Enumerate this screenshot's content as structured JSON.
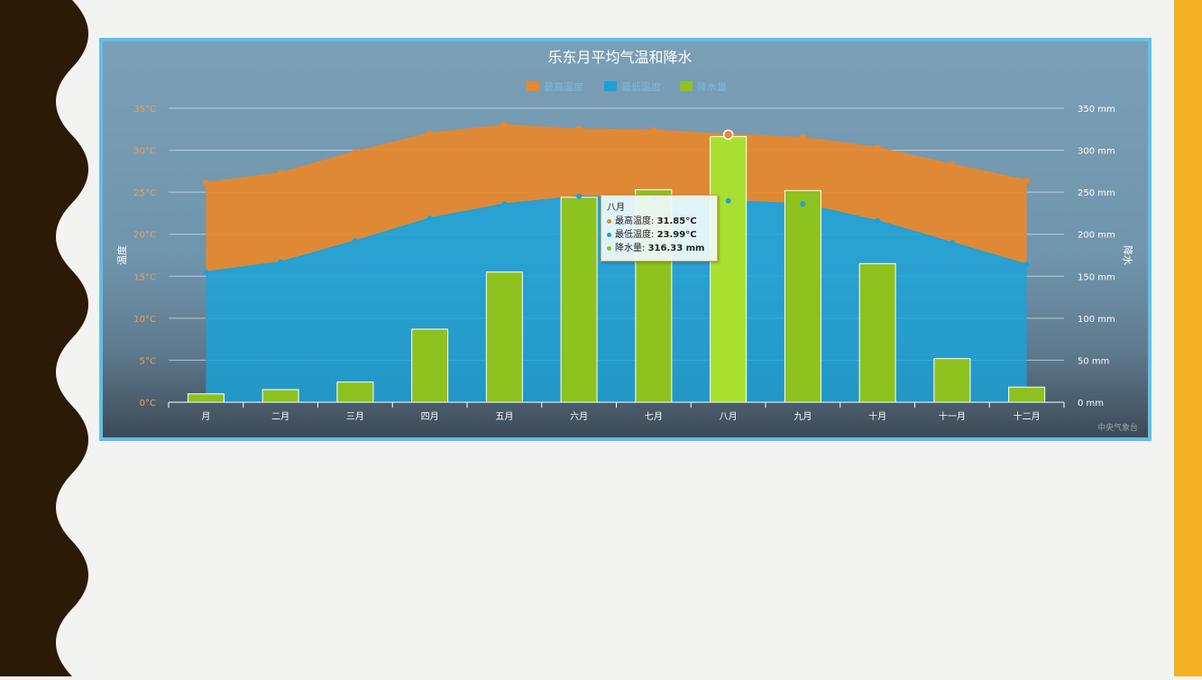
{
  "slide": {
    "left_band_color": "#2a1a06",
    "right_band_color": "#f5b124"
  },
  "chart_data": {
    "type": "bar",
    "title": "乐东月平均气温和降水",
    "categories": [
      "月",
      "二月",
      "三月",
      "四月",
      "五月",
      "六月",
      "七月",
      "八月",
      "九月",
      "十月",
      "十一月",
      "十二月"
    ],
    "series": [
      {
        "name": "最高温度",
        "kind": "area",
        "axis": "left",
        "color": "#e8882b",
        "values": [
          26.1,
          27.3,
          29.8,
          32.0,
          33.0,
          32.5,
          32.4,
          31.85,
          31.5,
          30.3,
          28.3,
          26.4
        ]
      },
      {
        "name": "最低温度",
        "kind": "area",
        "axis": "left",
        "color": "#1aa3d9",
        "values": [
          15.5,
          16.7,
          19.2,
          21.9,
          23.6,
          24.5,
          24.3,
          23.99,
          23.6,
          21.6,
          19.0,
          16.4
        ]
      },
      {
        "name": "降水量",
        "kind": "bar",
        "axis": "right",
        "color": "#8dc21f",
        "values": [
          10,
          15,
          24,
          87,
          155,
          244,
          253,
          316.33,
          252,
          165,
          52,
          18
        ]
      }
    ],
    "ylabel": "温度",
    "y2label": "降水",
    "ylim": [
      0,
      35
    ],
    "y2lim": [
      0,
      350
    ],
    "y_ticks": [
      "0°C",
      "5°C",
      "10°C",
      "15°C",
      "20°C",
      "25°C",
      "30°C",
      "35°C"
    ],
    "y2_ticks": [
      "0 mm",
      "50 mm",
      "100 mm",
      "150 mm",
      "200 mm",
      "250 mm",
      "300 mm",
      "350 mm"
    ],
    "grid": true,
    "legend_position": "top-center",
    "highlighted_index": 7,
    "credit": "中央气象台",
    "tooltip": {
      "title": "八月",
      "rows": [
        {
          "label": "最高温度: ",
          "value": "31.85°C",
          "color": "#e8882b"
        },
        {
          "label": "最低温度: ",
          "value": "23.99°C",
          "color": "#1aa3d9"
        },
        {
          "label": "降水量: ",
          "value": "316.33 mm",
          "color": "#8dc21f"
        }
      ]
    }
  }
}
